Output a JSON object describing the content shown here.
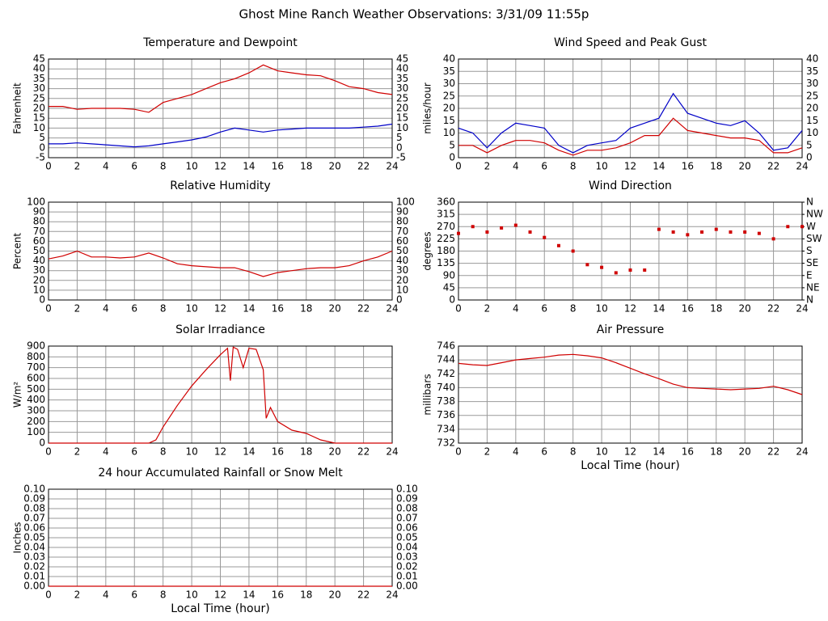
{
  "title": "Ghost Mine Ranch Weather Observations: 3/31/09 11:55p",
  "chart_data": [
    {
      "type": "line",
      "title": "Temperature and Dewpoint",
      "ylabel": "Fahrenheit",
      "x": [
        0,
        1,
        2,
        3,
        4,
        5,
        6,
        7,
        8,
        9,
        10,
        11,
        12,
        13,
        14,
        15,
        16,
        17,
        18,
        19,
        20,
        21,
        22,
        23,
        24
      ],
      "series": [
        {
          "color": "#d00000",
          "values": [
            21,
            21,
            19.5,
            20,
            20,
            20,
            19.5,
            18,
            23,
            25,
            27,
            30,
            33,
            35,
            38,
            42,
            39,
            38,
            37,
            36.5,
            34,
            31,
            30,
            28,
            27
          ]
        },
        {
          "color": "#0000c8",
          "values": [
            2,
            2,
            2.5,
            2,
            1.5,
            1,
            0.5,
            1,
            2,
            3,
            4,
            5.5,
            8,
            10,
            9,
            8,
            9,
            9.5,
            10,
            10,
            10,
            10,
            10.5,
            11,
            12
          ]
        }
      ],
      "xlim": [
        0,
        24
      ],
      "xticks": [
        0,
        2,
        4,
        6,
        8,
        10,
        12,
        14,
        16,
        18,
        20,
        22,
        24
      ],
      "ylim": [
        -5,
        45
      ],
      "yticks": [
        -5,
        0,
        5,
        10,
        15,
        20,
        25,
        30,
        35,
        40,
        45
      ],
      "grid": true,
      "right_ticks": true
    },
    {
      "type": "line",
      "title": "Wind Speed and Peak Gust",
      "ylabel": "miles/hour",
      "x": [
        0,
        1,
        2,
        3,
        4,
        5,
        6,
        7,
        8,
        9,
        10,
        11,
        12,
        13,
        14,
        15,
        16,
        17,
        18,
        19,
        20,
        21,
        22,
        23,
        24
      ],
      "series": [
        {
          "color": "#0000c8",
          "values": [
            12,
            10,
            4,
            10,
            14,
            13,
            12,
            5,
            2,
            5,
            6,
            7,
            12,
            14,
            16,
            26,
            18,
            16,
            14,
            13,
            15,
            10,
            3,
            4,
            11
          ]
        },
        {
          "color": "#d00000",
          "values": [
            5,
            5,
            2,
            5,
            7,
            7,
            6,
            3,
            1,
            3,
            3,
            4,
            6,
            9,
            9,
            16,
            11,
            10,
            9,
            8,
            8,
            7,
            2,
            2,
            4
          ]
        }
      ],
      "xlim": [
        0,
        24
      ],
      "xticks": [
        0,
        2,
        4,
        6,
        8,
        10,
        12,
        14,
        16,
        18,
        20,
        22,
        24
      ],
      "ylim": [
        0,
        40
      ],
      "yticks": [
        0,
        5,
        10,
        15,
        20,
        25,
        30,
        35,
        40
      ],
      "grid": true,
      "right_ticks": true
    },
    {
      "type": "line",
      "title": "Relative Humidity",
      "ylabel": "Percent",
      "x": [
        0,
        1,
        2,
        3,
        4,
        5,
        6,
        7,
        8,
        9,
        10,
        11,
        12,
        13,
        14,
        15,
        16,
        17,
        18,
        19,
        20,
        21,
        22,
        23,
        24
      ],
      "series": [
        {
          "color": "#d00000",
          "values": [
            42,
            45,
            50,
            44,
            44,
            43,
            44,
            48,
            43,
            37,
            35,
            34,
            33,
            33,
            29,
            24,
            28,
            30,
            32,
            33,
            33,
            35,
            40,
            44,
            50
          ]
        }
      ],
      "xlim": [
        0,
        24
      ],
      "xticks": [
        0,
        2,
        4,
        6,
        8,
        10,
        12,
        14,
        16,
        18,
        20,
        22,
        24
      ],
      "ylim": [
        0,
        100
      ],
      "yticks": [
        0,
        10,
        20,
        30,
        40,
        50,
        60,
        70,
        80,
        90,
        100
      ],
      "grid": true,
      "right_ticks": true
    },
    {
      "type": "scatter",
      "title": "Wind Direction",
      "ylabel": "degrees",
      "x": [
        0,
        1,
        2,
        3,
        4,
        5,
        6,
        7,
        8,
        9,
        10,
        11,
        12,
        13,
        14,
        15,
        16,
        17,
        18,
        19,
        20,
        21,
        22,
        23,
        24
      ],
      "series": [
        {
          "color": "#d00000",
          "values": [
            245,
            270,
            250,
            265,
            275,
            250,
            230,
            200,
            180,
            130,
            120,
            100,
            110,
            110,
            260,
            250,
            240,
            250,
            260,
            250,
            250,
            245,
            225,
            270,
            270
          ]
        }
      ],
      "xlim": [
        0,
        24
      ],
      "xticks": [
        0,
        2,
        4,
        6,
        8,
        10,
        12,
        14,
        16,
        18,
        20,
        22,
        24
      ],
      "ylim": [
        0,
        360
      ],
      "yticks": [
        0,
        45,
        90,
        135,
        180,
        225,
        270,
        315,
        360
      ],
      "grid": true,
      "y2lim": [
        0,
        360
      ],
      "y2ticks": [
        {
          "value": 0,
          "label": "N"
        },
        {
          "value": 45,
          "label": "NE"
        },
        {
          "value": 90,
          "label": "E"
        },
        {
          "value": 135,
          "label": "SE"
        },
        {
          "value": 180,
          "label": "S"
        },
        {
          "value": 225,
          "label": "SW"
        },
        {
          "value": 270,
          "label": "W"
        },
        {
          "value": 315,
          "label": "NW"
        },
        {
          "value": 360,
          "label": "N"
        }
      ]
    },
    {
      "type": "line",
      "title": "Solar Irradiance",
      "ylabel": "W/m²",
      "x": [
        0,
        7,
        7.5,
        8,
        9,
        10,
        11,
        12,
        12.5,
        12.7,
        12.9,
        13.2,
        13.6,
        14,
        14.5,
        15,
        15.2,
        15.5,
        16,
        17,
        18,
        19,
        20,
        24
      ],
      "series": [
        {
          "color": "#d00000",
          "values": [
            0,
            0,
            30,
            150,
            350,
            530,
            680,
            820,
            880,
            580,
            890,
            870,
            700,
            880,
            870,
            680,
            230,
            330,
            200,
            120,
            90,
            30,
            0,
            0
          ]
        }
      ],
      "xlim": [
        0,
        24
      ],
      "xticks": [
        0,
        2,
        4,
        6,
        8,
        10,
        12,
        14,
        16,
        18,
        20,
        22,
        24
      ],
      "ylim": [
        0,
        900
      ],
      "yticks": [
        0,
        100,
        200,
        300,
        400,
        500,
        600,
        700,
        800,
        900
      ],
      "grid": true
    },
    {
      "type": "line",
      "title": "Air Pressure",
      "ylabel": "millibars",
      "xlabel": "Local Time (hour)",
      "x": [
        0,
        1,
        2,
        3,
        4,
        5,
        6,
        7,
        8,
        9,
        10,
        11,
        12,
        13,
        14,
        15,
        16,
        17,
        18,
        19,
        20,
        21,
        22,
        23,
        24
      ],
      "series": [
        {
          "color": "#d00000",
          "values": [
            743.5,
            743.3,
            743.2,
            743.6,
            744.0,
            744.2,
            744.4,
            744.7,
            744.8,
            744.6,
            744.3,
            743.6,
            742.8,
            742.0,
            741.3,
            740.5,
            740.0,
            739.9,
            739.8,
            739.7,
            739.8,
            739.9,
            740.2,
            739.7,
            739.0
          ]
        }
      ],
      "xlim": [
        0,
        24
      ],
      "xticks": [
        0,
        2,
        4,
        6,
        8,
        10,
        12,
        14,
        16,
        18,
        20,
        22,
        24
      ],
      "ylim": [
        732,
        746
      ],
      "yticks": [
        732,
        734,
        736,
        738,
        740,
        742,
        744,
        746
      ],
      "grid": true
    },
    {
      "type": "line",
      "title": "24 hour Accumulated Rainfall or Snow Melt",
      "ylabel": "Inches",
      "xlabel": "Local Time (hour)",
      "x": [
        0,
        24
      ],
      "series": [
        {
          "color": "#d00000",
          "values": [
            0,
            0
          ]
        }
      ],
      "xlim": [
        0,
        24
      ],
      "xticks": [
        0,
        2,
        4,
        6,
        8,
        10,
        12,
        14,
        16,
        18,
        20,
        22,
        24
      ],
      "ylim": [
        0,
        0.1
      ],
      "yticks": [
        {
          "value": 0,
          "label": "0.00"
        },
        {
          "value": 0.01,
          "label": "0.01"
        },
        {
          "value": 0.02,
          "label": "0.02"
        },
        {
          "value": 0.03,
          "label": "0.03"
        },
        {
          "value": 0.04,
          "label": "0.04"
        },
        {
          "value": 0.05,
          "label": "0.05"
        },
        {
          "value": 0.06,
          "label": "0.06"
        },
        {
          "value": 0.07,
          "label": "0.07"
        },
        {
          "value": 0.08,
          "label": "0.08"
        },
        {
          "value": 0.09,
          "label": "0.09"
        },
        {
          "value": 0.1,
          "label": "0.10"
        }
      ],
      "grid": true,
      "right_ticks": true
    }
  ]
}
